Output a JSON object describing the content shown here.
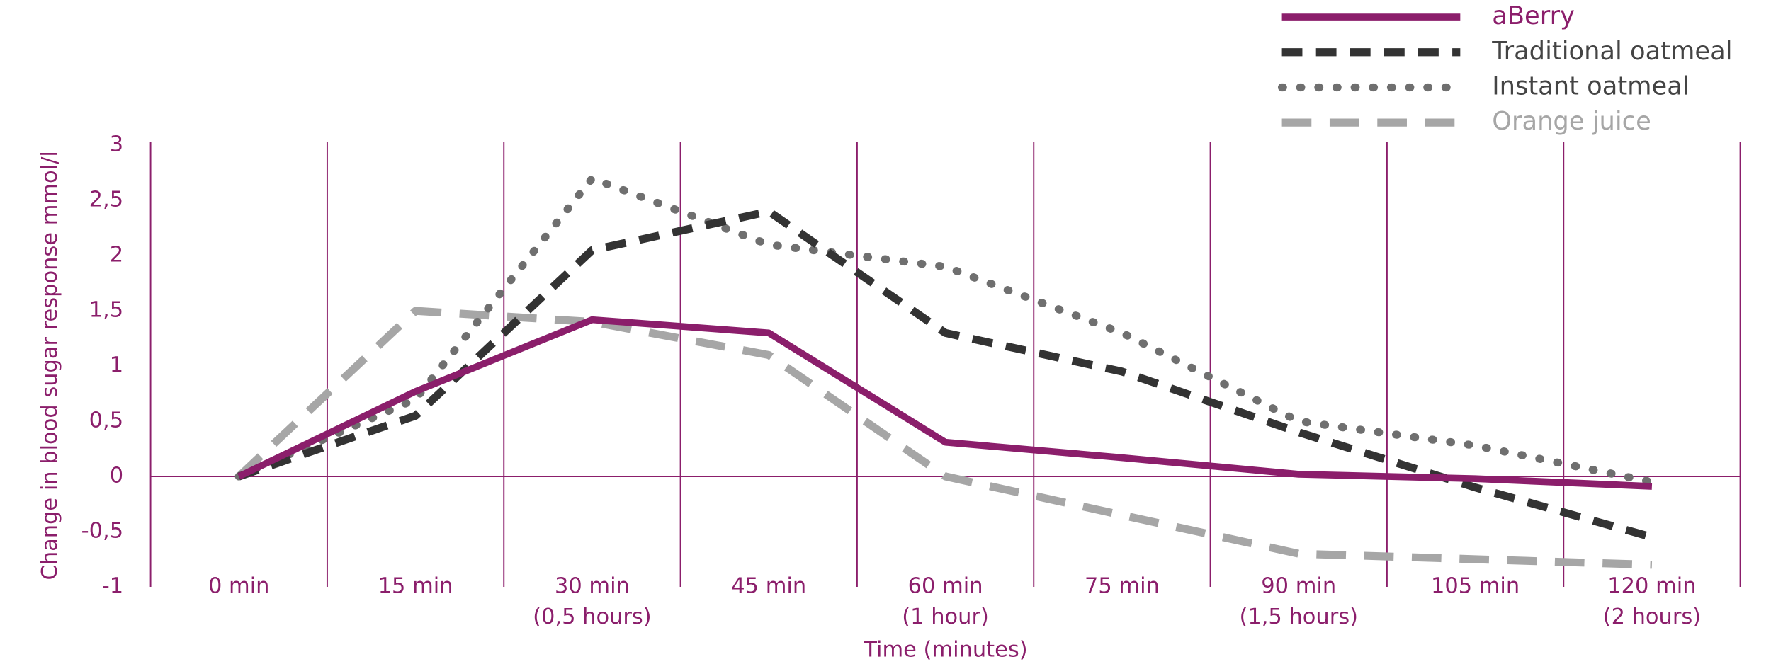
{
  "chart_data": {
    "type": "line",
    "y_label": "Change in blood sugar response mmol/l",
    "x_label": "Time (minutes)",
    "categories": [
      [
        "0 min"
      ],
      [
        "15 min"
      ],
      [
        "30 min",
        "(0,5 hours)"
      ],
      [
        "45 min"
      ],
      [
        "60 min",
        "(1 hour)"
      ],
      [
        "75 min"
      ],
      [
        "90 min",
        "(1,5 hours)"
      ],
      [
        "105 min"
      ],
      [
        "120 min",
        "(2 hours)"
      ]
    ],
    "ylim": [
      -1,
      3
    ],
    "yticks": [
      -1,
      {
        "value": -0.5,
        "label": "-0,5"
      },
      0,
      {
        "value": 0.5,
        "label": "0,5"
      },
      1,
      {
        "value": 1.5,
        "label": "1,5"
      },
      2,
      {
        "value": 2.5,
        "label": "2,5"
      },
      3
    ],
    "grid": true,
    "legend": "top-right",
    "series": [
      {
        "name": "aBerry",
        "color": "#8b1e6b",
        "dash": "solid",
        "values": [
          0,
          0.77,
          1.42,
          1.3,
          0.31,
          0.17,
          0.02,
          -0.02,
          -0.09
        ]
      },
      {
        "name": "Traditional oatmeal",
        "color": "#333333",
        "dash": "dashed",
        "values": [
          0,
          0.55,
          2.05,
          2.4,
          1.3,
          0.95,
          0.4,
          -0.1,
          -0.55
        ]
      },
      {
        "name": "Instant oatmeal",
        "color": "#6f6f6f",
        "dash": "dotted",
        "values": [
          0,
          0.7,
          2.7,
          2.1,
          1.9,
          1.3,
          0.5,
          0.28,
          -0.05
        ]
      },
      {
        "name": "Orange juice",
        "color": "#a6a6a6",
        "dash": "longdash",
        "values": [
          0,
          1.5,
          1.4,
          1.1,
          0,
          -0.35,
          -0.7,
          -0.75,
          -0.8
        ]
      }
    ]
  }
}
